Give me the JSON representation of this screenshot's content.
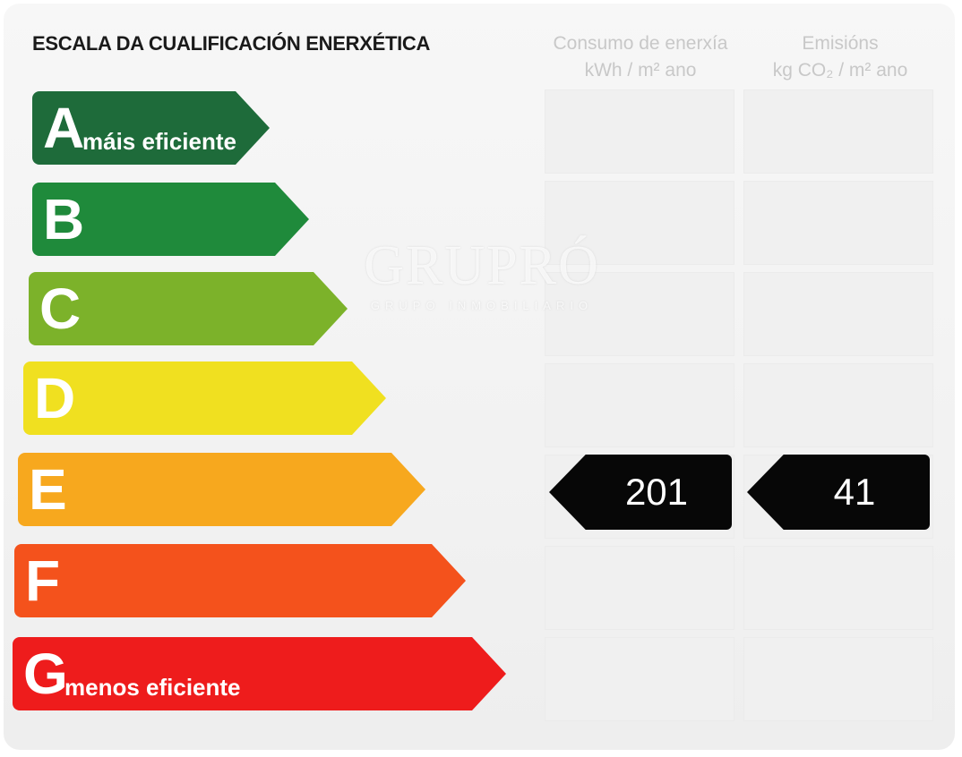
{
  "title": "ESCALA DA CUALIFICACIÓN ENERXÉTICA",
  "columns": {
    "energy": {
      "line1": "Consumo de enerxía",
      "line2": "kWh / m² ano"
    },
    "emissions": {
      "line1": "Emisións",
      "line2": "kg CO₂ / m² ano"
    }
  },
  "scale": [
    {
      "letter": "A",
      "desc": "máis eficiente",
      "color": "#1e6b3a"
    },
    {
      "letter": "B",
      "desc": "",
      "color": "#1f8a3b"
    },
    {
      "letter": "C",
      "desc": "",
      "color": "#7cb22a"
    },
    {
      "letter": "D",
      "desc": "",
      "color": "#f0e020"
    },
    {
      "letter": "E",
      "desc": "",
      "color": "#f7a81e"
    },
    {
      "letter": "F",
      "desc": "",
      "color": "#f4521c"
    },
    {
      "letter": "G",
      "desc": "menos eficiente",
      "color": "#ee1c1c"
    }
  ],
  "rating": {
    "class": "E",
    "energy_value": "201",
    "emissions_value": "41"
  },
  "watermark": {
    "main": "GRUPRÓ",
    "sub": "GRUPO INMOBILIARIO"
  }
}
